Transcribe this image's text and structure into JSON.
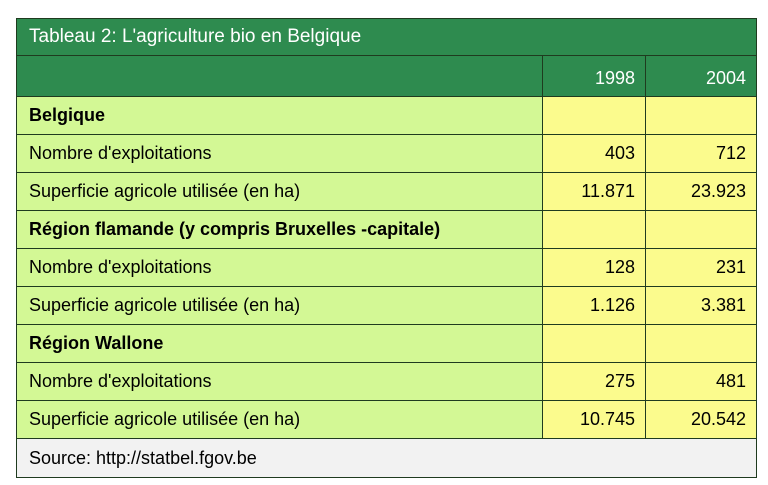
{
  "table": {
    "title": "Tableau 2: L'agriculture bio en Belgique",
    "years": [
      "1998",
      "2004"
    ],
    "sections": [
      {
        "name": "Belgique",
        "rows": [
          {
            "label": "Nombre d'exploitations",
            "v1998": "403",
            "v2004": "712"
          },
          {
            "label": "Superficie agricole utilisée (en ha)",
            "v1998": "11.871",
            "v2004": "23.923"
          }
        ]
      },
      {
        "name": "Région flamande (y compris Bruxelles -capitale)",
        "rows": [
          {
            "label": "Nombre d'exploitations",
            "v1998": "128",
            "v2004": "231"
          },
          {
            "label": "Superficie agricole utilisée (en ha)",
            "v1998": "1.126",
            "v2004": "3.381"
          }
        ]
      },
      {
        "name": "Région Wallone",
        "rows": [
          {
            "label": "Nombre d'exploitations",
            "v1998": "275",
            "v2004": "481"
          },
          {
            "label": "Superficie agricole utilisée (en ha)",
            "v1998": "10.745",
            "v2004": "20.542"
          }
        ]
      }
    ],
    "source": "Source: http://statbel.fgov.be"
  },
  "colors": {
    "header_green": "#2e8b4f",
    "label_lime": "#d3f895",
    "value_yellow": "#fbfb8d",
    "source_gray": "#f2f2f2",
    "border": "#1f3b1f"
  }
}
